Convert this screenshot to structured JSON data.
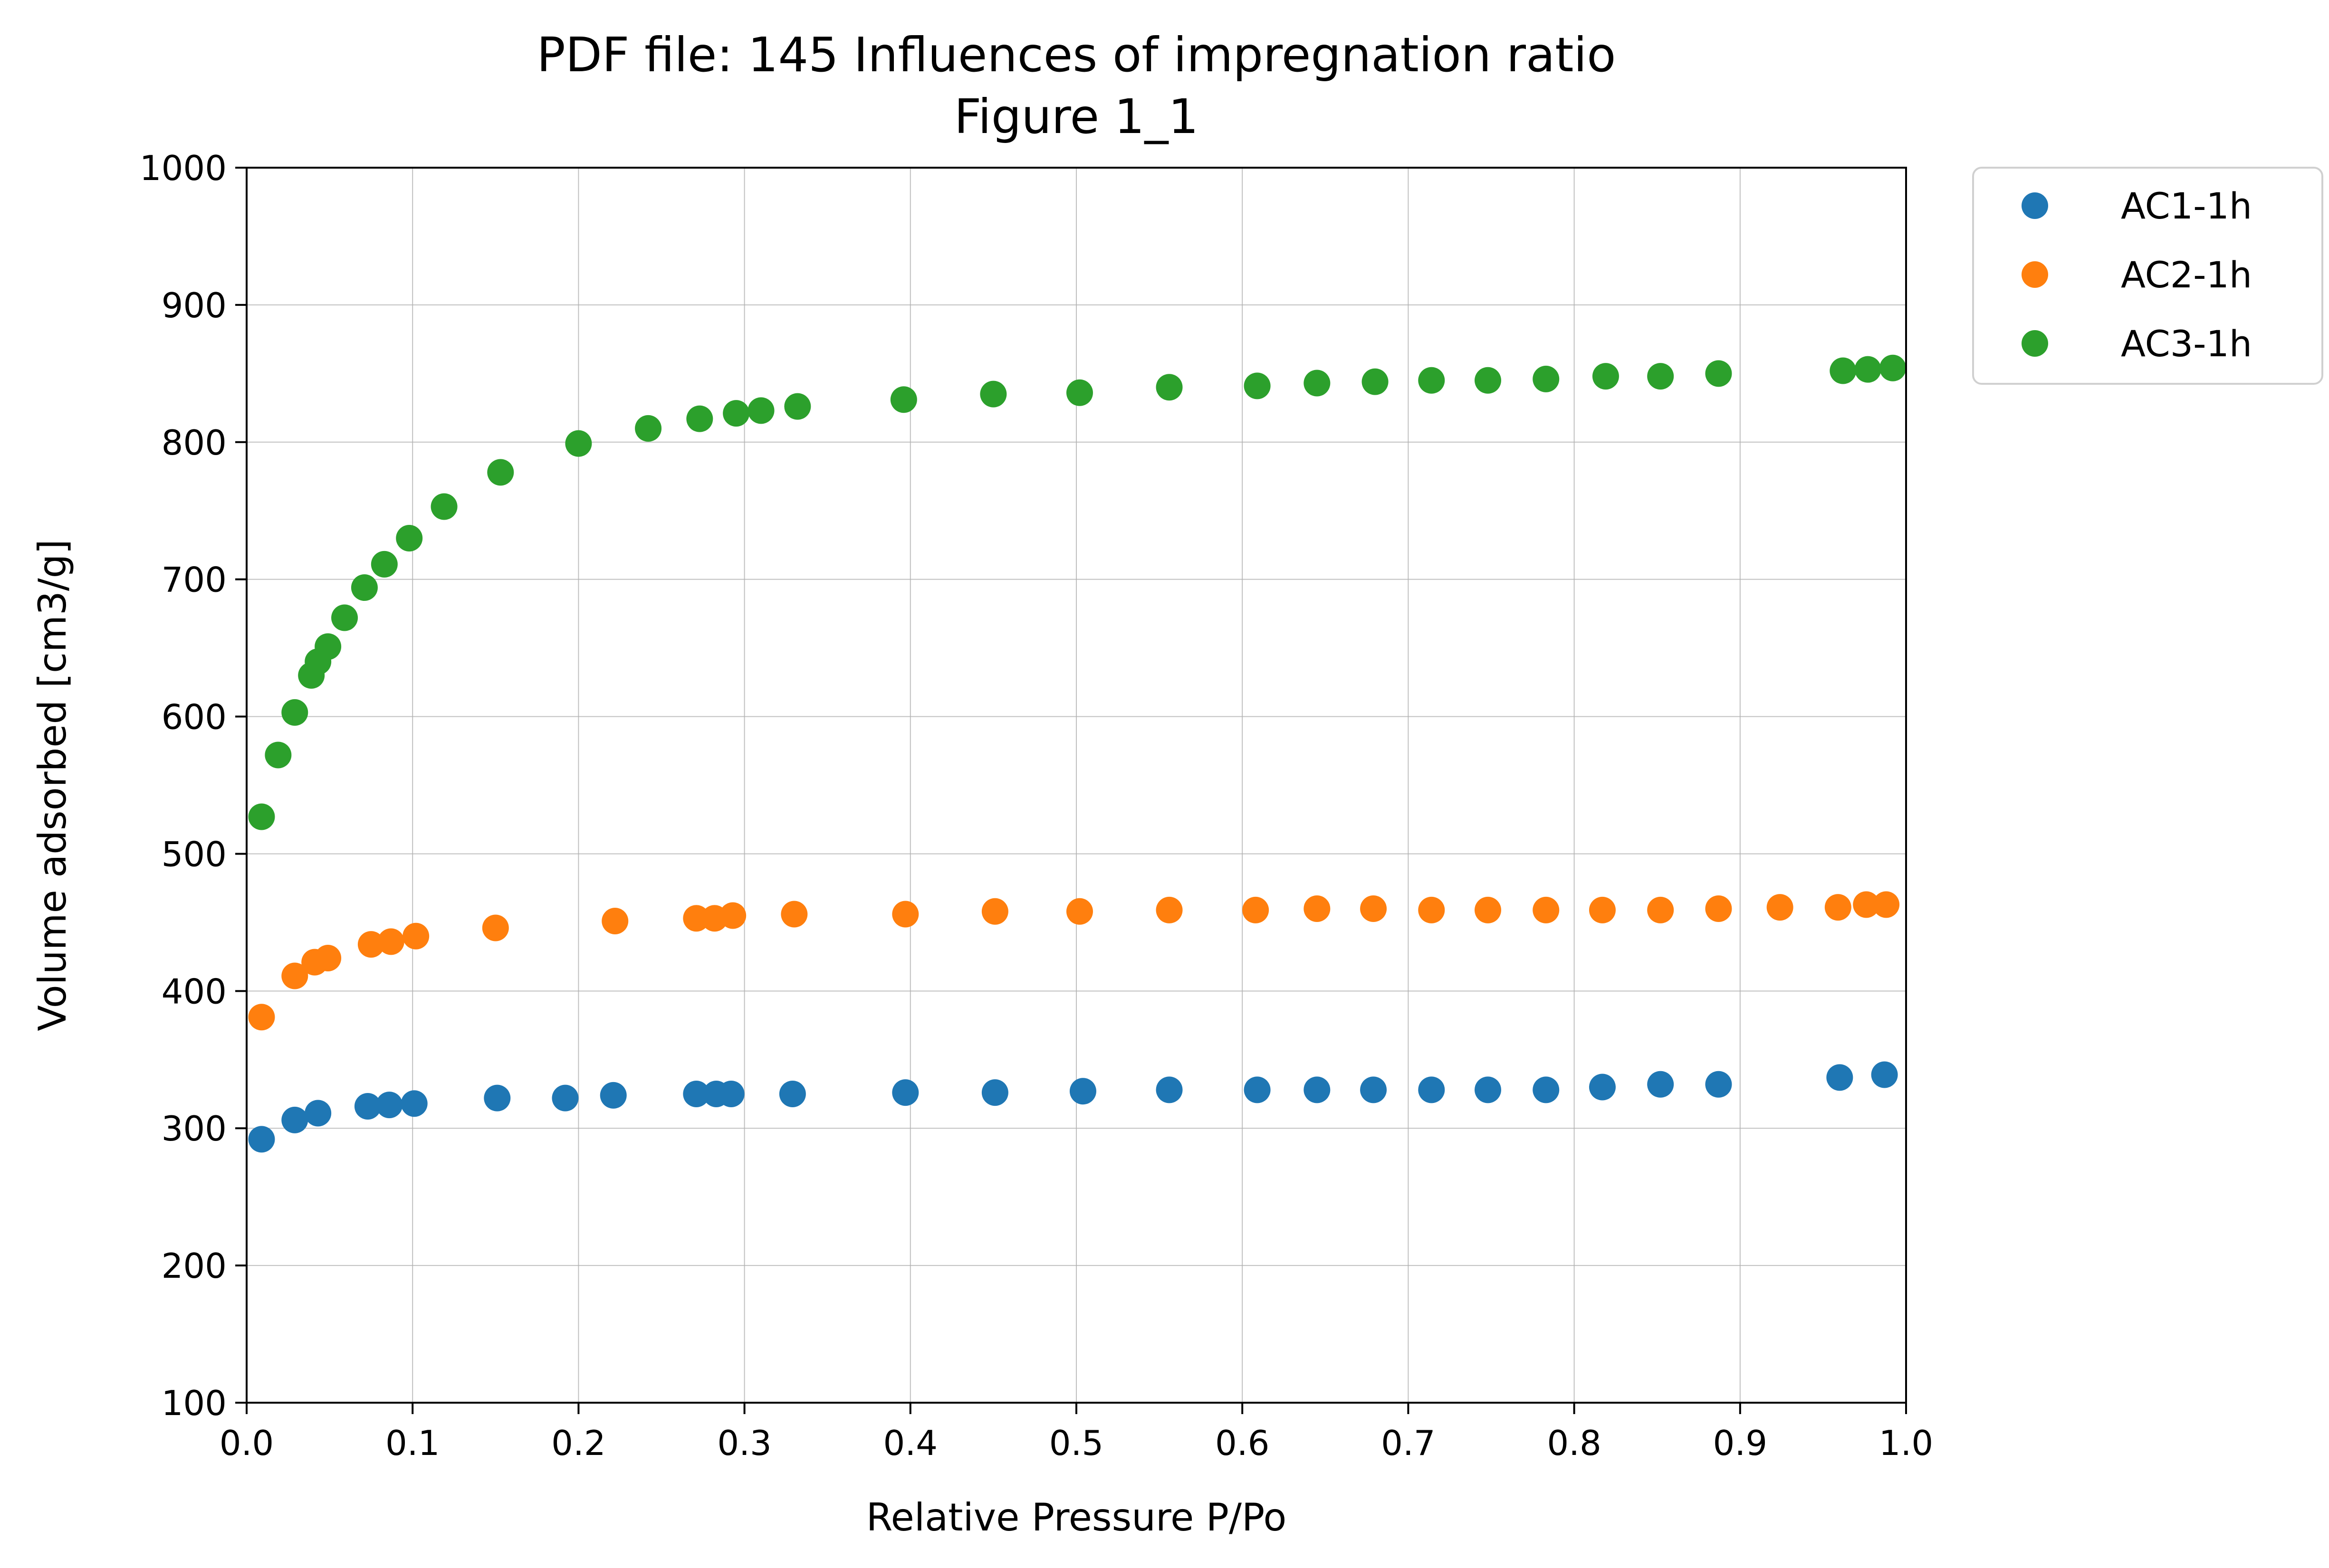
{
  "chart_data": {
    "type": "scatter",
    "title": "PDF file: 145 Influences of impregnation ratio",
    "subtitle": "Figure 1_1",
    "xlabel": "Relative Pressure P/Po",
    "ylabel": "Volume adsorbed [cm3/g]",
    "xlim": [
      0.0,
      1.0
    ],
    "ylim": [
      100,
      1000
    ],
    "xticks": [
      0.0,
      0.1,
      0.2,
      0.3,
      0.4,
      0.5,
      0.6,
      0.7,
      0.8,
      0.9,
      1.0
    ],
    "xtick_labels": [
      "0.0",
      "0.1",
      "0.2",
      "0.3",
      "0.4",
      "0.5",
      "0.6",
      "0.7",
      "0.8",
      "0.9",
      "1.0"
    ],
    "yticks": [
      100,
      200,
      300,
      400,
      500,
      600,
      700,
      800,
      900,
      1000
    ],
    "ytick_labels": [
      "100",
      "200",
      "300",
      "400",
      "500",
      "600",
      "700",
      "800",
      "900",
      "1000"
    ],
    "grid": true,
    "legend_position": "outside-top-right",
    "series": [
      {
        "name": "AC1-1h",
        "color": "#1f77b4",
        "points": [
          [
            0.009,
            292
          ],
          [
            0.029,
            306
          ],
          [
            0.043,
            311
          ],
          [
            0.073,
            316
          ],
          [
            0.086,
            317
          ],
          [
            0.101,
            318
          ],
          [
            0.151,
            322
          ],
          [
            0.192,
            322
          ],
          [
            0.221,
            324
          ],
          [
            0.271,
            325
          ],
          [
            0.283,
            325
          ],
          [
            0.292,
            325
          ],
          [
            0.329,
            325
          ],
          [
            0.397,
            326
          ],
          [
            0.451,
            326
          ],
          [
            0.504,
            327
          ],
          [
            0.556,
            328
          ],
          [
            0.609,
            328
          ],
          [
            0.645,
            328
          ],
          [
            0.679,
            328
          ],
          [
            0.714,
            328
          ],
          [
            0.748,
            328
          ],
          [
            0.783,
            328
          ],
          [
            0.817,
            330
          ],
          [
            0.852,
            332
          ],
          [
            0.887,
            332
          ],
          [
            0.96,
            337
          ],
          [
            0.987,
            339
          ]
        ]
      },
      {
        "name": "AC2-1h",
        "color": "#ff7f0e",
        "points": [
          [
            0.009,
            381
          ],
          [
            0.029,
            411
          ],
          [
            0.041,
            421
          ],
          [
            0.049,
            424
          ],
          [
            0.075,
            434
          ],
          [
            0.087,
            436
          ],
          [
            0.102,
            440
          ],
          [
            0.15,
            446
          ],
          [
            0.222,
            451
          ],
          [
            0.271,
            453
          ],
          [
            0.282,
            453
          ],
          [
            0.293,
            455
          ],
          [
            0.33,
            456
          ],
          [
            0.397,
            456
          ],
          [
            0.451,
            458
          ],
          [
            0.502,
            458
          ],
          [
            0.556,
            459
          ],
          [
            0.608,
            459
          ],
          [
            0.645,
            460
          ],
          [
            0.679,
            460
          ],
          [
            0.714,
            459
          ],
          [
            0.748,
            459
          ],
          [
            0.783,
            459
          ],
          [
            0.817,
            459
          ],
          [
            0.852,
            459
          ],
          [
            0.887,
            460
          ],
          [
            0.924,
            461
          ],
          [
            0.959,
            461
          ],
          [
            0.976,
            463
          ],
          [
            0.988,
            463
          ]
        ]
      },
      {
        "name": "AC3-1h",
        "color": "#2ca02c",
        "points": [
          [
            0.009,
            527
          ],
          [
            0.019,
            572
          ],
          [
            0.029,
            603
          ],
          [
            0.039,
            630
          ],
          [
            0.043,
            640
          ],
          [
            0.049,
            651
          ],
          [
            0.059,
            672
          ],
          [
            0.071,
            694
          ],
          [
            0.083,
            711
          ],
          [
            0.098,
            730
          ],
          [
            0.119,
            753
          ],
          [
            0.153,
            778
          ],
          [
            0.2,
            799
          ],
          [
            0.242,
            810
          ],
          [
            0.273,
            817
          ],
          [
            0.295,
            821
          ],
          [
            0.31,
            823
          ],
          [
            0.332,
            826
          ],
          [
            0.396,
            831
          ],
          [
            0.45,
            835
          ],
          [
            0.502,
            836
          ],
          [
            0.556,
            840
          ],
          [
            0.609,
            841
          ],
          [
            0.645,
            843
          ],
          [
            0.68,
            844
          ],
          [
            0.714,
            845
          ],
          [
            0.748,
            845
          ],
          [
            0.783,
            846
          ],
          [
            0.819,
            848
          ],
          [
            0.852,
            848
          ],
          [
            0.887,
            850
          ],
          [
            0.962,
            852
          ],
          [
            0.977,
            853
          ],
          [
            0.992,
            854
          ]
        ]
      }
    ]
  }
}
